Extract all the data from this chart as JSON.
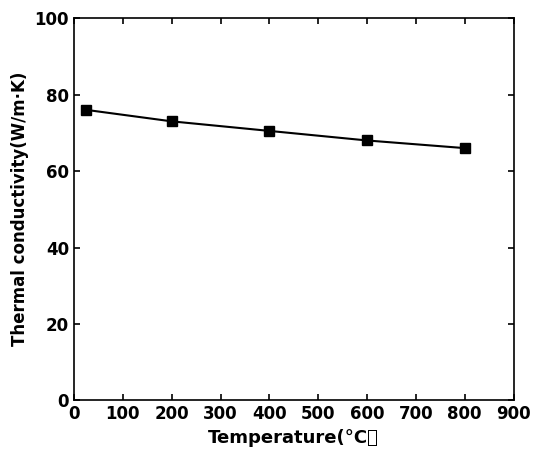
{
  "x": [
    25,
    200,
    400,
    600,
    800
  ],
  "y": [
    76.0,
    73.0,
    70.5,
    68.0,
    66.0
  ],
  "xlabel": "Temperature(°C）",
  "ylabel": "Thermal conductivity(W/m·K)",
  "xlim": [
    0,
    900
  ],
  "ylim": [
    0,
    100
  ],
  "xticks": [
    0,
    100,
    200,
    300,
    400,
    500,
    600,
    700,
    800,
    900
  ],
  "yticks": [
    0,
    20,
    40,
    60,
    80,
    100
  ],
  "line_color": "#000000",
  "marker": "s",
  "marker_size": 7,
  "marker_facecolor": "#000000",
  "marker_edgecolor": "#000000",
  "linewidth": 1.5,
  "figsize": [
    5.42,
    4.58
  ],
  "dpi": 100,
  "bg_color": "#ffffff",
  "tick_labelsize": 12,
  "xlabel_fontsize": 13,
  "ylabel_fontsize": 12
}
